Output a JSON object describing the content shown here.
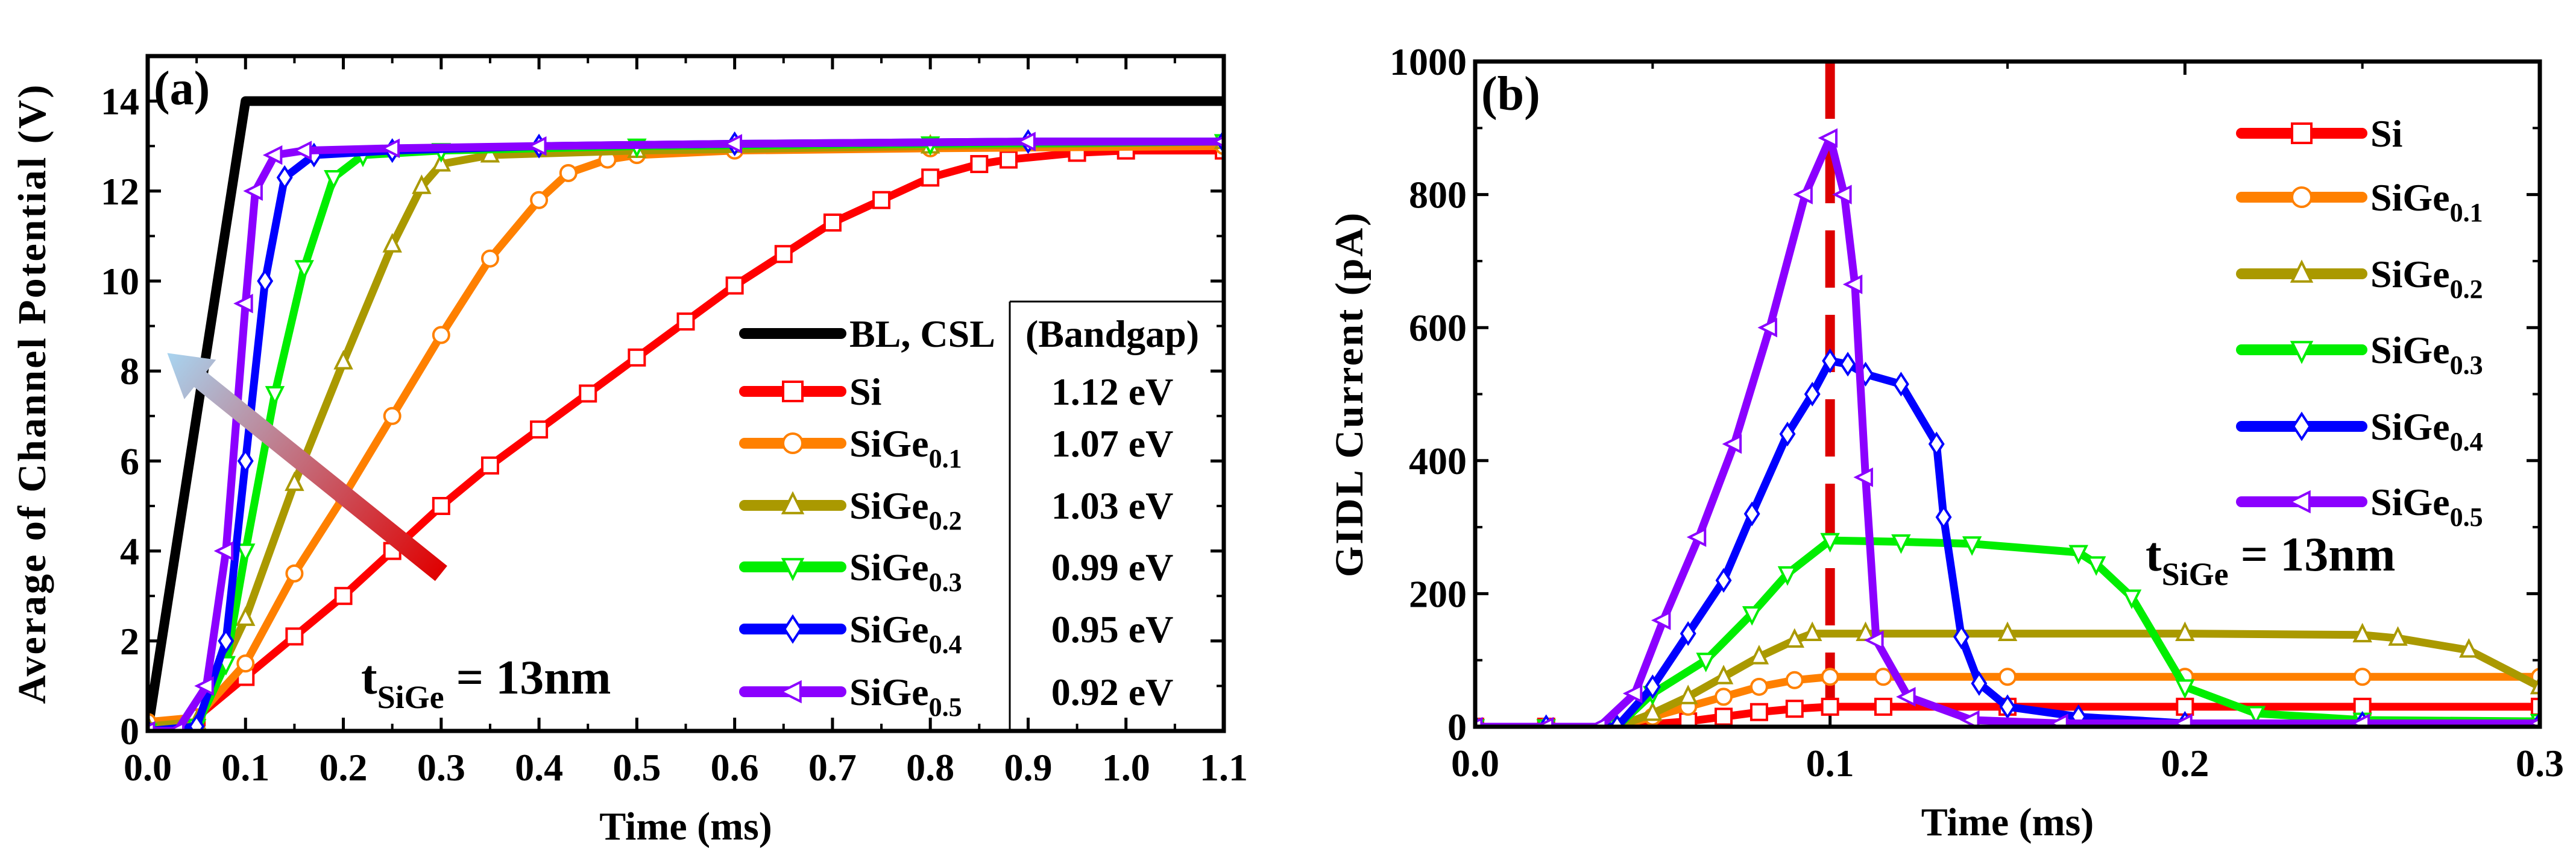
{
  "colors": {
    "bl": "#000000",
    "si": "#ff0000",
    "sige01": "#ff8000",
    "sige02": "#aa9900",
    "sige03": "#00ee00",
    "sige04": "#0000ff",
    "sige05": "#8b00ff",
    "dash": "#dd0000"
  },
  "chart_data": [
    {
      "type": "line",
      "panel_label": "(a)",
      "xlabel": "Time (ms)",
      "ylabel": "Average of Channel Potential (V)",
      "xlim": [
        0,
        1.1
      ],
      "ylim": [
        0,
        15
      ],
      "xticks": [
        "0.0",
        "0.1",
        "0.2",
        "0.3",
        "0.4",
        "0.5",
        "0.6",
        "0.7",
        "0.8",
        "0.9",
        "1.0",
        "1.1"
      ],
      "yticks": [
        "0",
        "2",
        "4",
        "6",
        "8",
        "10",
        "12",
        "14"
      ],
      "legend_header": "(Bandgap)",
      "annotation": {
        "main": "t",
        "sub": "SiGe",
        "rest": " = 13nm"
      },
      "arrow": {
        "from": [
          0.3,
          3.5
        ],
        "to": [
          0.02,
          8.4
        ]
      },
      "series": [
        {
          "name": "BL, CSL",
          "sub": "",
          "bandgap": "",
          "color_key": "bl",
          "marker": "none",
          "x": [
            0,
            0.1,
            1.1
          ],
          "y": [
            0,
            14,
            14
          ]
        },
        {
          "name": "Si",
          "sub": "",
          "bandgap": "1.12 eV",
          "color_key": "si",
          "marker": "square",
          "x": [
            0,
            0.05,
            0.1,
            0.15,
            0.2,
            0.25,
            0.3,
            0.35,
            0.4,
            0.45,
            0.5,
            0.55,
            0.6,
            0.65,
            0.7,
            0.75,
            0.8,
            0.85,
            0.88,
            0.95,
            1.0,
            1.1
          ],
          "y": [
            0.1,
            0.3,
            1.2,
            2.1,
            3.0,
            4.0,
            5.0,
            5.9,
            6.7,
            7.5,
            8.3,
            9.1,
            9.9,
            10.6,
            11.3,
            11.8,
            12.3,
            12.6,
            12.7,
            12.85,
            12.9,
            12.9
          ]
        },
        {
          "name": "SiGe",
          "sub": "0.1",
          "bandgap": "1.07 eV",
          "color_key": "sige01",
          "marker": "circle",
          "x": [
            0,
            0.05,
            0.1,
            0.15,
            0.2,
            0.25,
            0.3,
            0.35,
            0.4,
            0.43,
            0.47,
            0.5,
            0.6,
            0.8,
            1.1
          ],
          "y": [
            0.2,
            0.3,
            1.5,
            3.5,
            5.2,
            7.0,
            8.8,
            10.5,
            11.8,
            12.4,
            12.7,
            12.8,
            12.9,
            12.95,
            13.0
          ]
        },
        {
          "name": "SiGe",
          "sub": "0.2",
          "bandgap": "1.03 eV",
          "color_key": "sige02",
          "marker": "triangle-up",
          "x": [
            0,
            0.05,
            0.1,
            0.15,
            0.2,
            0.25,
            0.28,
            0.3,
            0.35,
            0.5,
            0.8,
            1.1
          ],
          "y": [
            0.1,
            0.2,
            2.5,
            5.5,
            8.2,
            10.8,
            12.1,
            12.6,
            12.8,
            12.9,
            13.0,
            13.1
          ]
        },
        {
          "name": "SiGe",
          "sub": "0.3",
          "bandgap": "0.99 eV",
          "color_key": "sige03",
          "marker": "triangle-down",
          "x": [
            0,
            0.05,
            0.08,
            0.1,
            0.13,
            0.16,
            0.19,
            0.22,
            0.3,
            0.5,
            0.8,
            1.1
          ],
          "y": [
            0,
            0.1,
            1.5,
            4.0,
            7.5,
            10.3,
            12.3,
            12.8,
            12.9,
            13.0,
            13.05,
            13.1
          ]
        },
        {
          "name": "SiGe",
          "sub": "0.4",
          "bandgap": "0.95 eV",
          "color_key": "sige04",
          "marker": "diamond",
          "x": [
            0,
            0.05,
            0.08,
            0.1,
            0.12,
            0.14,
            0.17,
            0.25,
            0.4,
            0.6,
            0.9,
            1.1
          ],
          "y": [
            0,
            0.1,
            2.0,
            6.0,
            10.0,
            12.3,
            12.8,
            12.9,
            13.0,
            13.05,
            13.1,
            13.1
          ]
        },
        {
          "name": "SiGe",
          "sub": "0.5",
          "bandgap": "0.92 eV",
          "color_key": "sige05",
          "marker": "triangle-left",
          "x": [
            0,
            0.03,
            0.06,
            0.08,
            0.1,
            0.11,
            0.13,
            0.16,
            0.25,
            0.4,
            0.6,
            0.9,
            1.1
          ],
          "y": [
            0,
            0,
            1.0,
            4.0,
            9.5,
            12.0,
            12.8,
            12.9,
            12.95,
            13.0,
            13.05,
            13.1,
            13.1
          ]
        }
      ]
    },
    {
      "type": "line",
      "panel_label": "(b)",
      "xlabel": "Time (ms)",
      "ylabel": "GIDL Current (pA)",
      "xlim": [
        0,
        0.3
      ],
      "ylim": [
        0,
        1000
      ],
      "xticks": [
        "0.0",
        "0.1",
        "0.2",
        "0.3"
      ],
      "yticks": [
        "0",
        "200",
        "400",
        "600",
        "800",
        "1000"
      ],
      "vline_x": 0.1,
      "annotation": {
        "main": "t",
        "sub": "SiGe",
        "rest": " = 13nm"
      },
      "legend_position": "top-right",
      "series": [
        {
          "name": "Si",
          "sub": "",
          "color_key": "si",
          "marker": "square",
          "x": [
            0,
            0.02,
            0.04,
            0.06,
            0.07,
            0.08,
            0.09,
            0.1,
            0.115,
            0.15,
            0.2,
            0.25,
            0.3
          ],
          "y": [
            0,
            0,
            0,
            8,
            15,
            22,
            27,
            30,
            30,
            30,
            30,
            30,
            30
          ]
        },
        {
          "name": "SiGe",
          "sub": "0.1",
          "color_key": "sige01",
          "marker": "circle",
          "x": [
            0,
            0.02,
            0.04,
            0.05,
            0.06,
            0.07,
            0.08,
            0.09,
            0.1,
            0.115,
            0.15,
            0.2,
            0.25,
            0.3
          ],
          "y": [
            0,
            0,
            0,
            15,
            30,
            45,
            60,
            70,
            75,
            75,
            75,
            75,
            75,
            75
          ]
        },
        {
          "name": "SiGe",
          "sub": "0.2",
          "color_key": "sige02",
          "marker": "triangle-up",
          "x": [
            0,
            0.02,
            0.04,
            0.05,
            0.06,
            0.07,
            0.08,
            0.09,
            0.095,
            0.11,
            0.15,
            0.2,
            0.25,
            0.26,
            0.28,
            0.3
          ],
          "y": [
            0,
            0,
            0,
            20,
            45,
            75,
            105,
            130,
            140,
            140,
            140,
            140,
            138,
            133,
            115,
            60
          ]
        },
        {
          "name": "SiGe",
          "sub": "0.3",
          "color_key": "sige03",
          "marker": "triangle-down",
          "x": [
            0,
            0.02,
            0.04,
            0.05,
            0.065,
            0.078,
            0.088,
            0.1,
            0.12,
            0.14,
            0.17,
            0.175,
            0.185,
            0.2,
            0.22,
            0.25,
            0.3
          ],
          "y": [
            0,
            0,
            0,
            50,
            100,
            170,
            230,
            280,
            278,
            275,
            262,
            245,
            195,
            60,
            20,
            10,
            8
          ]
        },
        {
          "name": "SiGe",
          "sub": "0.4",
          "color_key": "sige04",
          "marker": "diamond",
          "x": [
            0,
            0.02,
            0.04,
            0.05,
            0.06,
            0.07,
            0.078,
            0.088,
            0.095,
            0.1,
            0.105,
            0.11,
            0.12,
            0.13,
            0.132,
            0.137,
            0.142,
            0.15,
            0.17,
            0.2,
            0.25,
            0.3
          ],
          "y": [
            0,
            0,
            0,
            60,
            140,
            220,
            320,
            440,
            500,
            550,
            545,
            530,
            515,
            425,
            315,
            135,
            65,
            30,
            15,
            5,
            5,
            5
          ]
        },
        {
          "name": "SiGe",
          "sub": "0.5",
          "color_key": "sige05",
          "marker": "triangle-left",
          "x": [
            0,
            0.02,
            0.035,
            0.045,
            0.053,
            0.063,
            0.073,
            0.083,
            0.093,
            0.1,
            0.104,
            0.107,
            0.11,
            0.113,
            0.122,
            0.14,
            0.165,
            0.2,
            0.25,
            0.3
          ],
          "y": [
            0,
            0,
            0,
            50,
            160,
            285,
            425,
            600,
            800,
            885,
            800,
            665,
            375,
            130,
            45,
            10,
            5,
            5,
            5,
            5
          ]
        }
      ]
    }
  ]
}
